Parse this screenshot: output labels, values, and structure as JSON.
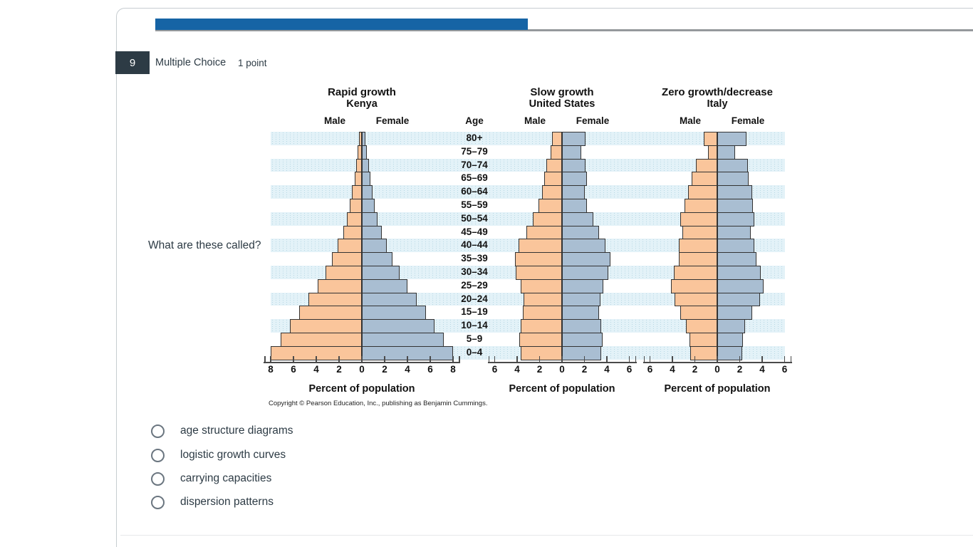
{
  "question": {
    "number": "9",
    "type_label": "Multiple Choice",
    "points_label": "1 point",
    "prompt": "What are these called?",
    "options": [
      "age structure diagrams",
      "logistic growth curves",
      "carrying capacities",
      "dispersion patterns"
    ]
  },
  "chart_data": {
    "type": "bar",
    "subtype": "population-pyramids",
    "age_axis_label": "Age",
    "age_groups": [
      "80+",
      "75–79",
      "70–74",
      "65–69",
      "60–64",
      "55–59",
      "50–54",
      "45–49",
      "40–44",
      "35–39",
      "30–34",
      "25–29",
      "20–24",
      "15–19",
      "10–14",
      "5–9",
      "0–4"
    ],
    "pyramids": [
      {
        "title": "Rapid growth",
        "subtitle": "Kenya",
        "male_label": "Male",
        "female_label": "Female",
        "xlabel": "Percent of population",
        "axis_max": 8,
        "axis_ticks": [
          8,
          6,
          4,
          2,
          0,
          2,
          4,
          6,
          8
        ],
        "male": [
          0.25,
          0.35,
          0.5,
          0.65,
          0.85,
          1.05,
          1.3,
          1.65,
          2.1,
          2.6,
          3.2,
          3.9,
          4.7,
          5.5,
          6.3,
          7.1,
          8.0
        ],
        "female": [
          0.3,
          0.45,
          0.6,
          0.75,
          0.95,
          1.15,
          1.4,
          1.75,
          2.2,
          2.7,
          3.3,
          4.0,
          4.8,
          5.6,
          6.4,
          7.2,
          8.0
        ]
      },
      {
        "title": "Slow growth",
        "subtitle": "United States",
        "male_label": "Male",
        "female_label": "Female",
        "xlabel": "Percent of population",
        "axis_max": 6,
        "axis_ticks": [
          6,
          4,
          2,
          0,
          2,
          4,
          6
        ],
        "male": [
          0.9,
          1.0,
          1.4,
          1.6,
          1.8,
          2.1,
          2.6,
          3.2,
          3.9,
          4.2,
          4.1,
          3.7,
          3.4,
          3.5,
          3.7,
          3.8,
          3.7
        ],
        "female": [
          2.1,
          1.7,
          2.1,
          2.2,
          2.0,
          2.2,
          2.8,
          3.3,
          3.9,
          4.3,
          4.1,
          3.7,
          3.4,
          3.3,
          3.5,
          3.6,
          3.5
        ]
      },
      {
        "title": "Zero growth/decrease",
        "subtitle": "Italy",
        "male_label": "Male",
        "female_label": "Female",
        "xlabel": "Percent of population",
        "axis_max": 6,
        "axis_ticks": [
          6,
          4,
          2,
          0,
          2,
          4,
          6
        ],
        "male": [
          1.2,
          0.8,
          1.9,
          2.3,
          2.6,
          2.9,
          3.3,
          3.1,
          3.4,
          3.4,
          3.9,
          4.1,
          3.8,
          3.3,
          2.8,
          2.5,
          2.4
        ],
        "female": [
          2.6,
          1.6,
          2.7,
          2.8,
          3.1,
          3.2,
          3.3,
          3.0,
          3.3,
          3.5,
          3.9,
          4.1,
          3.8,
          3.1,
          2.5,
          2.3,
          2.2
        ]
      }
    ],
    "colors": {
      "male_bar": "#FAC59B",
      "female_bar": "#A9BED2",
      "bar_border": "#333333",
      "row_band": "#E3F2F8"
    },
    "copyright": "Copyright © Pearson Education, Inc., publishing as Benjamin Cummings."
  },
  "chrome": {
    "progress_color": "#1664A5",
    "badge_color": "#2D3B45"
  }
}
